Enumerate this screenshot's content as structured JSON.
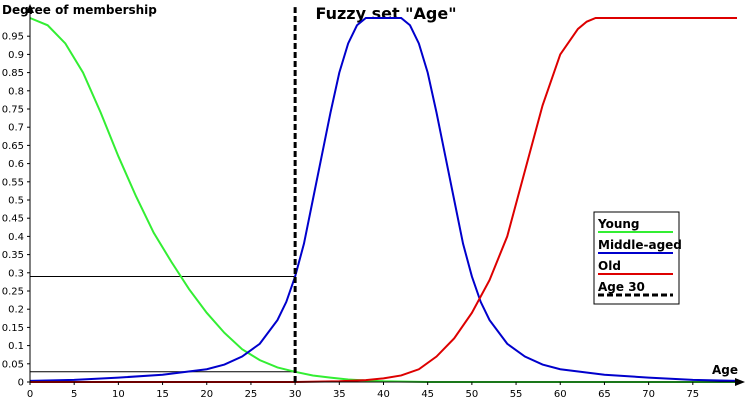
{
  "chart_data": {
    "type": "line",
    "title": "Fuzzy set \"Age\"",
    "ylabel": "Degree of membership",
    "xlabel": "Age",
    "xlim": [
      0,
      80
    ],
    "ylim": [
      0,
      1
    ],
    "x_ticks": [
      0,
      5,
      10,
      15,
      20,
      25,
      30,
      35,
      40,
      45,
      50,
      55,
      60,
      65,
      70,
      75
    ],
    "y_ticks": [
      0,
      0.05,
      0.1,
      0.15,
      0.2,
      0.25,
      0.3,
      0.35,
      0.4,
      0.45,
      0.5,
      0.55,
      0.6,
      0.65,
      0.7,
      0.75,
      0.8,
      0.85,
      0.9,
      0.95
    ],
    "y_tick_labels": [
      "0",
      "0.05",
      "0.1",
      "0.15",
      "0.2",
      "0.25",
      "0.3",
      "0.35",
      "0.4",
      "0.45",
      "0.5",
      "0.55",
      "0.6",
      "0.65",
      "0.7",
      "0.75",
      "0.8",
      "0.85",
      "0.9",
      "0.95"
    ],
    "grid": false,
    "legend_position": "right",
    "series": [
      {
        "name": "Young",
        "color": "#33ee33",
        "x": [
          0,
          2,
          4,
          6,
          8,
          10,
          12,
          14,
          16,
          18,
          20,
          22,
          24,
          26,
          28,
          30,
          32,
          34,
          36,
          38,
          40,
          45,
          50,
          60,
          70,
          80
        ],
        "y": [
          1.0,
          0.98,
          0.93,
          0.85,
          0.74,
          0.62,
          0.51,
          0.41,
          0.33,
          0.255,
          0.19,
          0.135,
          0.09,
          0.06,
          0.04,
          0.028,
          0.018,
          0.012,
          0.007,
          0.004,
          0.002,
          0,
          0,
          0,
          0,
          0
        ]
      },
      {
        "name": "Middle-aged",
        "color": "#0000cc",
        "x": [
          0,
          5,
          10,
          15,
          20,
          22,
          24,
          26,
          28,
          29,
          30,
          31,
          32,
          33,
          34,
          35,
          36,
          37,
          38,
          39,
          42,
          43,
          44,
          45,
          46,
          47,
          48,
          49,
          50,
          51,
          52,
          54,
          56,
          58,
          60,
          65,
          70,
          75,
          80
        ],
        "y": [
          0.003,
          0.006,
          0.012,
          0.02,
          0.035,
          0.048,
          0.07,
          0.105,
          0.17,
          0.22,
          0.29,
          0.38,
          0.5,
          0.62,
          0.74,
          0.85,
          0.93,
          0.98,
          1.0,
          1.0,
          1.0,
          0.98,
          0.93,
          0.85,
          0.74,
          0.62,
          0.5,
          0.38,
          0.29,
          0.22,
          0.17,
          0.105,
          0.07,
          0.048,
          0.035,
          0.02,
          0.012,
          0.006,
          0.003
        ]
      },
      {
        "name": "Old",
        "color": "#dd0000",
        "x": [
          0,
          10,
          20,
          30,
          35,
          38,
          40,
          42,
          44,
          46,
          48,
          50,
          52,
          54,
          56,
          58,
          60,
          62,
          63,
          64,
          70,
          80
        ],
        "y": [
          0,
          0,
          0,
          0,
          0.002,
          0.005,
          0.01,
          0.018,
          0.035,
          0.07,
          0.12,
          0.19,
          0.28,
          0.4,
          0.58,
          0.76,
          0.9,
          0.97,
          0.99,
          1.0,
          1.0,
          1.0
        ]
      },
      {
        "name": "Age 30",
        "color": "#000000",
        "dashed": true,
        "x": [
          30,
          30
        ],
        "y": [
          0,
          1.03
        ]
      }
    ],
    "reference_lines": [
      {
        "y": 0.29,
        "x_from": 0,
        "x_to": 30
      },
      {
        "y": 0.028,
        "x_from": 0,
        "x_to": 30
      }
    ]
  }
}
